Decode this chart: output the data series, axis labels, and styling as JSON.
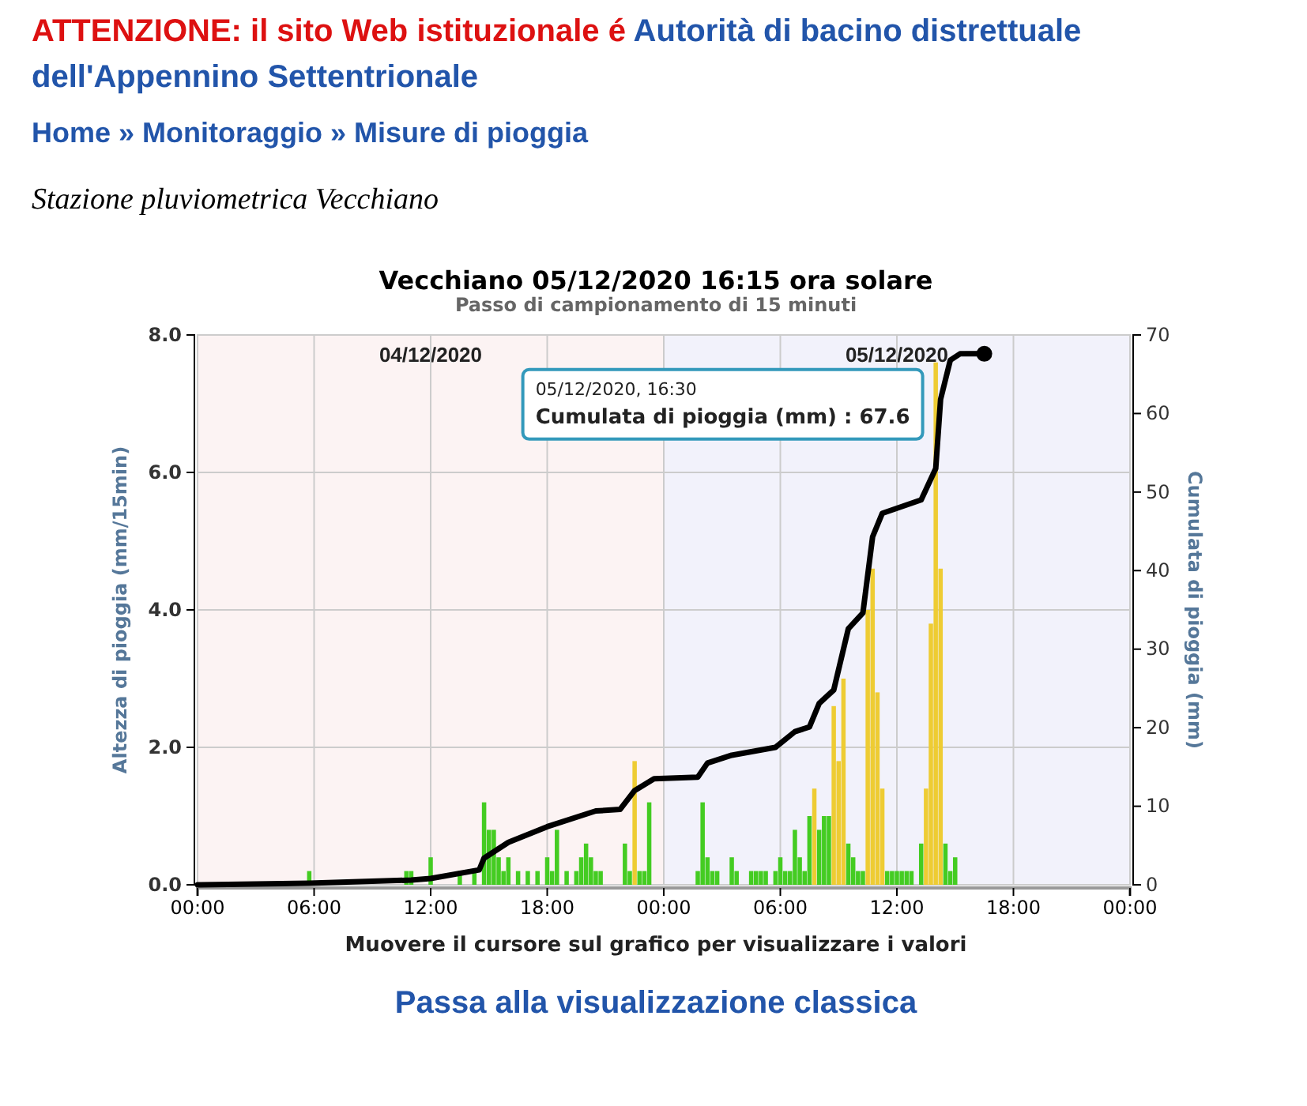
{
  "chart_data": {
    "type": "bar",
    "title": "Vecchiano 05/12/2020 16:15 ora solare",
    "subtitle": "Passo di campionamento di 15 minuti",
    "xlabel": "Muovere il cursore sul grafico per visualizzare i valori",
    "ylabel": "Altezza di pioggia (mm/15min)",
    "y2label": "Cumulata di pioggia (mm)",
    "xlim": [
      "2020-12-04T00:00",
      "2020-12-06T00:00"
    ],
    "xticks": [
      {
        "value": "2020-12-04T00:00",
        "label": "00:00"
      },
      {
        "value": "2020-12-04T06:00",
        "label": "06:00"
      },
      {
        "value": "2020-12-04T12:00",
        "label": "12:00"
      },
      {
        "value": "2020-12-04T18:00",
        "label": "18:00"
      },
      {
        "value": "2020-12-05T00:00",
        "label": "00:00"
      },
      {
        "value": "2020-12-05T06:00",
        "label": "06:00"
      },
      {
        "value": "2020-12-05T12:00",
        "label": "12:00"
      },
      {
        "value": "2020-12-05T18:00",
        "label": "18:00"
      },
      {
        "value": "2020-12-06T00:00",
        "label": "00:00"
      }
    ],
    "ylim": [
      0,
      8
    ],
    "yticks": [
      {
        "value": 0,
        "label": "0.0"
      },
      {
        "value": 2,
        "label": "2.0"
      },
      {
        "value": 4,
        "label": "4.0"
      },
      {
        "value": 6,
        "label": "6.0"
      },
      {
        "value": 8,
        "label": "8.0"
      }
    ],
    "y2lim": [
      0,
      70
    ],
    "y2ticks": [
      0,
      10,
      20,
      30,
      40,
      50,
      60,
      70
    ],
    "grid": true,
    "bands": [
      {
        "axis": "x",
        "from": "2020-12-04T00:00",
        "to": "2020-12-05T00:00",
        "label": "04/12/2020",
        "color": "#fcf3f3"
      },
      {
        "axis": "x",
        "from": "2020-12-05T00:00",
        "to": "2020-12-06T00:00",
        "label": "05/12/2020",
        "color": "#f2f2fb"
      }
    ],
    "series": [
      {
        "x": [
          "2020-12-04T05:45",
          "2020-12-04T10:45",
          "2020-12-04T11:00",
          "2020-12-04T12:00",
          "2020-12-04T13:30",
          "2020-12-04T14:15",
          "2020-12-04T14:45",
          "2020-12-04T15:00",
          "2020-12-04T15:15",
          "2020-12-04T15:30",
          "2020-12-04T15:45",
          "2020-12-04T16:00",
          "2020-12-04T16:30",
          "2020-12-04T17:00",
          "2020-12-04T17:30",
          "2020-12-04T18:00",
          "2020-12-04T18:15",
          "2020-12-04T18:30",
          "2020-12-04T19:00",
          "2020-12-04T19:30",
          "2020-12-04T19:45",
          "2020-12-04T20:00",
          "2020-12-04T20:15",
          "2020-12-04T20:30",
          "2020-12-04T20:45",
          "2020-12-04T22:00",
          "2020-12-04T22:15",
          "2020-12-04T22:30",
          "2020-12-04T22:45",
          "2020-12-04T23:00",
          "2020-12-04T23:15",
          "2020-12-05T01:45",
          "2020-12-05T02:00",
          "2020-12-05T02:15",
          "2020-12-05T02:30",
          "2020-12-05T02:45",
          "2020-12-05T03:30",
          "2020-12-05T03:45",
          "2020-12-05T04:30",
          "2020-12-05T04:45",
          "2020-12-05T05:00",
          "2020-12-05T05:15",
          "2020-12-05T05:45",
          "2020-12-05T06:00",
          "2020-12-05T06:15",
          "2020-12-05T06:30",
          "2020-12-05T06:45",
          "2020-12-05T07:00",
          "2020-12-05T07:15",
          "2020-12-05T07:30",
          "2020-12-05T07:45",
          "2020-12-05T08:00",
          "2020-12-05T08:15",
          "2020-12-05T08:30",
          "2020-12-05T08:45",
          "2020-12-05T09:00",
          "2020-12-05T09:15",
          "2020-12-05T09:30",
          "2020-12-05T09:45",
          "2020-12-05T10:00",
          "2020-12-05T10:15",
          "2020-12-05T10:30",
          "2020-12-05T10:45",
          "2020-12-05T11:00",
          "2020-12-05T11:15",
          "2020-12-05T11:30",
          "2020-12-05T11:45",
          "2020-12-05T12:00",
          "2020-12-05T12:15",
          "2020-12-05T12:30",
          "2020-12-05T12:45",
          "2020-12-05T13:15",
          "2020-12-05T13:30",
          "2020-12-05T13:45",
          "2020-12-05T14:00",
          "2020-12-05T14:15",
          "2020-12-05T14:30",
          "2020-12-05T14:45",
          "2020-12-05T15:00"
        ],
        "values": [
          0.2,
          0.2,
          0.2,
          0.4,
          0.2,
          0.2,
          1.2,
          0.8,
          0.8,
          0.4,
          0.2,
          0.4,
          0.2,
          0.2,
          0.2,
          0.4,
          0.2,
          0.8,
          0.2,
          0.2,
          0.4,
          0.6,
          0.4,
          0.2,
          0.2,
          0.6,
          0.2,
          1.8,
          0.2,
          0.2,
          1.2,
          0.2,
          1.2,
          0.4,
          0.2,
          0.2,
          0.4,
          0.2,
          0.2,
          0.2,
          0.2,
          0.2,
          0.2,
          0.4,
          0.2,
          0.2,
          0.8,
          0.4,
          0.2,
          1.0,
          1.4,
          0.8,
          1.0,
          1.0,
          2.6,
          1.8,
          3.0,
          0.6,
          0.4,
          0.2,
          0.2,
          4.0,
          4.6,
          2.8,
          1.4,
          0.2,
          0.2,
          0.2,
          0.2,
          0.2,
          0.2,
          0.6,
          1.4,
          3.8,
          7.6,
          4.6,
          0.6,
          0.2,
          0.4
        ],
        "colors": [
          "#44cc22",
          "#44cc22",
          "#44cc22",
          "#44cc22",
          "#44cc22",
          "#44cc22",
          "#44cc22",
          "#44cc22",
          "#44cc22",
          "#44cc22",
          "#44cc22",
          "#44cc22",
          "#44cc22",
          "#44cc22",
          "#44cc22",
          "#44cc22",
          "#44cc22",
          "#44cc22",
          "#44cc22",
          "#44cc22",
          "#44cc22",
          "#44cc22",
          "#44cc22",
          "#44cc22",
          "#44cc22",
          "#44cc22",
          "#44cc22",
          "#eecc33",
          "#44cc22",
          "#44cc22",
          "#44cc22",
          "#44cc22",
          "#44cc22",
          "#44cc22",
          "#44cc22",
          "#44cc22",
          "#44cc22",
          "#44cc22",
          "#44cc22",
          "#44cc22",
          "#44cc22",
          "#44cc22",
          "#44cc22",
          "#44cc22",
          "#44cc22",
          "#44cc22",
          "#44cc22",
          "#44cc22",
          "#44cc22",
          "#44cc22",
          "#eecc33",
          "#44cc22",
          "#44cc22",
          "#44cc22",
          "#eecc33",
          "#eecc33",
          "#eecc33",
          "#44cc22",
          "#44cc22",
          "#44cc22",
          "#44cc22",
          "#eecc33",
          "#eecc33",
          "#eecc33",
          "#eecc33",
          "#44cc22",
          "#44cc22",
          "#44cc22",
          "#44cc22",
          "#44cc22",
          "#44cc22",
          "#44cc22",
          "#eecc33",
          "#eecc33",
          "#eecc33",
          "#eecc33",
          "#44cc22",
          "#44cc22",
          "#44cc22"
        ]
      },
      {
        "type": "line",
        "axis": "y2",
        "color": "#000000",
        "marker": "none",
        "line_style": "solid",
        "x": [
          "2020-12-04T00:00",
          "2020-12-04T05:45",
          "2020-12-04T11:00",
          "2020-12-04T12:00",
          "2020-12-04T14:30",
          "2020-12-04T14:45",
          "2020-12-04T16:00",
          "2020-12-04T18:00",
          "2020-12-04T20:30",
          "2020-12-04T21:45",
          "2020-12-04T22:30",
          "2020-12-04T23:30",
          "2020-12-05T01:45",
          "2020-12-05T02:15",
          "2020-12-05T03:30",
          "2020-12-05T05:45",
          "2020-12-05T06:45",
          "2020-12-05T07:30",
          "2020-12-05T08:00",
          "2020-12-05T08:45",
          "2020-12-05T09:30",
          "2020-12-05T10:15",
          "2020-12-05T10:45",
          "2020-12-05T11:15",
          "2020-12-05T13:15",
          "2020-12-05T14:00",
          "2020-12-05T14:15",
          "2020-12-05T14:45",
          "2020-12-05T15:15",
          "2020-12-05T16:30"
        ],
        "values": [
          0,
          0.2,
          0.6,
          0.8,
          1.9,
          3.4,
          5.4,
          7.4,
          9.4,
          9.6,
          12.0,
          13.5,
          13.7,
          15.5,
          16.5,
          17.5,
          19.5,
          20.1,
          23.1,
          24.8,
          32.6,
          34.6,
          44.3,
          47.3,
          49.0,
          53.0,
          61.8,
          66.8,
          67.6,
          67.6
        ]
      }
    ],
    "annotations": [
      "ATTENZIONE: il sito Web istituzionale é",
      "Autorità di bacino distrettuale dell'Appennino Settentrionale",
      "Home » Monitoraggio » Misure di pioggia",
      "Stazione pluviometrica Vecchiano",
      "Passa alla visualizzazione classica",
      "05/12/2020, 16:30\nCumulata di pioggia (mm) :  67.6"
    ]
  }
}
